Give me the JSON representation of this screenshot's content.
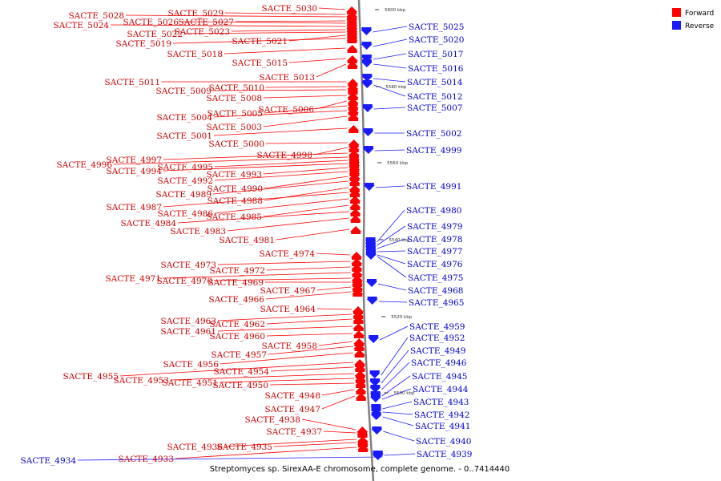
{
  "caption": "Streptomyces sp. SirexAA-E chromosome, complete genome. - 0..7414440",
  "colors": {
    "forward": "#ff0000",
    "reverse": "#1a1aff",
    "forward_label": "#cc0000",
    "reverse_label": "#0000cc",
    "backbone": "#808080"
  },
  "legend": [
    {
      "label": "Forward",
      "color": "#ff0000"
    },
    {
      "label": "Reverse",
      "color": "#1a1aff"
    }
  ],
  "scale_ticks": [
    "5600 kbp",
    "5580 kbp",
    "5560 kbp",
    "5540 kbp",
    "5520 kbp",
    "5500 kbp"
  ],
  "forward_labels": [
    "SACTE_5030",
    "SACTE_5029",
    "SACTE_5028",
    "SACTE_5027",
    "SACTE_5026",
    "SACTE_5024",
    "SACTE_5023",
    "SACTE_5022",
    "SACTE_5021",
    "SACTE_5019",
    "SACTE_5018",
    "SACTE_5015",
    "SACTE_5013",
    "SACTE_5011",
    "SACTE_5010",
    "SACTE_5009",
    "SACTE_5008",
    "SACTE_5006",
    "SACTE_5005",
    "SACTE_5004",
    "SACTE_5003",
    "SACTE_5001",
    "SACTE_5000",
    "SACTE_4998",
    "SACTE_4997",
    "SACTE_4996",
    "SACTE_4995",
    "SACTE_4994",
    "SACTE_4993",
    "SACTE_4992",
    "SACTE_4990",
    "SACTE_4989",
    "SACTE_4988",
    "SACTE_4987",
    "SACTE_4986",
    "SACTE_4985",
    "SACTE_4984",
    "SACTE_4983",
    "SACTE_4981",
    "SACTE_4974",
    "SACTE_4973",
    "SACTE_4972",
    "SACTE_4971",
    "SACTE_4970",
    "SACTE_4969",
    "SACTE_4967",
    "SACTE_4966",
    "SACTE_4964",
    "SACTE_4963",
    "SACTE_4962",
    "SACTE_4961",
    "SACTE_4960",
    "SACTE_4958",
    "SACTE_4957",
    "SACTE_4956",
    "SACTE_4955",
    "SACTE_4954",
    "SACTE_4953",
    "SACTE_4951",
    "SACTE_4950",
    "SACTE_4948",
    "SACTE_4947",
    "SACTE_4938",
    "SACTE_4937",
    "SACTE_4936",
    "SACTE_4935",
    "SACTE_4933"
  ],
  "reverse_labels": [
    "SACTE_5025",
    "SACTE_5020",
    "SACTE_5017",
    "SACTE_5016",
    "SACTE_5014",
    "SACTE_5012",
    "SACTE_5007",
    "SACTE_5002",
    "SACTE_4999",
    "SACTE_4991",
    "SACTE_4980",
    "SACTE_4979",
    "SACTE_4978",
    "SACTE_4977",
    "SACTE_4976",
    "SACTE_4975",
    "SACTE_4968",
    "SACTE_4965",
    "SACTE_4959",
    "SACTE_4952",
    "SACTE_4949",
    "SACTE_4946",
    "SACTE_4945",
    "SACTE_4944",
    "SACTE_4943",
    "SACTE_4942",
    "SACTE_4941",
    "SACTE_4940",
    "SACTE_4939",
    "SACTE_4934"
  ]
}
